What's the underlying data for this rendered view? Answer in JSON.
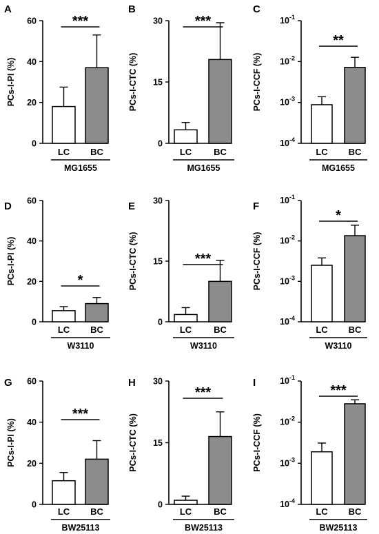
{
  "chart_data": [
    {
      "panel": "A",
      "type": "bar",
      "categories": [
        "LC",
        "BC"
      ],
      "values": [
        18,
        37
      ],
      "errors": [
        9.5,
        16
      ],
      "ylabel": "PCs-I-PI (%)",
      "ylim": [
        0,
        60
      ],
      "yticks": [
        "0",
        "20",
        "40",
        "60"
      ],
      "strain": "MG1655",
      "significance": "***",
      "bar_colors": [
        "#ffffff",
        "#8c8c8c"
      ]
    },
    {
      "panel": "B",
      "type": "bar",
      "categories": [
        "LC",
        "BC"
      ],
      "values": [
        3.3,
        20.5
      ],
      "errors": [
        1.8,
        9
      ],
      "ylabel": "PCs-I-CTC (%)",
      "ylim": [
        0,
        30
      ],
      "yticks": [
        "0",
        "15",
        "30"
      ],
      "strain": "MG1655",
      "significance": "***",
      "bar_colors": [
        "#ffffff",
        "#8c8c8c"
      ]
    },
    {
      "panel": "C",
      "type": "bar",
      "categories": [
        "LC",
        "BC"
      ],
      "values": [
        0.00088,
        0.0072
      ],
      "errors": [
        0.0005,
        0.0055
      ],
      "ylabel": "PCs-I-CCF (%)",
      "ylim": [
        0.0001,
        0.1
      ],
      "yscale": "log",
      "yticks": [
        {
          "base": "10",
          "exp": "-4"
        },
        {
          "base": "10",
          "exp": "-3"
        },
        {
          "base": "10",
          "exp": "-2"
        },
        {
          "base": "10",
          "exp": "-1"
        }
      ],
      "strain": "MG1655",
      "significance": "**",
      "bar_colors": [
        "#ffffff",
        "#8c8c8c"
      ]
    },
    {
      "panel": "D",
      "type": "bar",
      "categories": [
        "LC",
        "BC"
      ],
      "values": [
        5.5,
        9
      ],
      "errors": [
        2,
        3
      ],
      "ylabel": "PCs-I-PI (%)",
      "ylim": [
        0,
        60
      ],
      "yticks": [
        "0",
        "20",
        "40",
        "60"
      ],
      "strain": "W3110",
      "significance": "*",
      "bar_colors": [
        "#ffffff",
        "#8c8c8c"
      ]
    },
    {
      "panel": "E",
      "type": "bar",
      "categories": [
        "LC",
        "BC"
      ],
      "values": [
        1.8,
        10
      ],
      "errors": [
        1.7,
        5.2
      ],
      "ylabel": "PCs-I-CTC (%)",
      "ylim": [
        0,
        30
      ],
      "yticks": [
        "0",
        "15",
        "30"
      ],
      "strain": "W3110",
      "significance": "***",
      "bar_colors": [
        "#ffffff",
        "#8c8c8c"
      ]
    },
    {
      "panel": "F",
      "type": "bar",
      "categories": [
        "LC",
        "BC"
      ],
      "values": [
        0.0025,
        0.0135
      ],
      "errors": [
        0.0013,
        0.011
      ],
      "ylabel": "PCs-I-CCF (%)",
      "ylim": [
        0.0001,
        0.1
      ],
      "yscale": "log",
      "yticks": [
        {
          "base": "10",
          "exp": "-4"
        },
        {
          "base": "10",
          "exp": "-3"
        },
        {
          "base": "10",
          "exp": "-2"
        },
        {
          "base": "10",
          "exp": "-1"
        }
      ],
      "strain": "W3110",
      "significance": "*",
      "bar_colors": [
        "#ffffff",
        "#8c8c8c"
      ]
    },
    {
      "panel": "G",
      "type": "bar",
      "categories": [
        "LC",
        "BC"
      ],
      "values": [
        11.5,
        22
      ],
      "errors": [
        4,
        9
      ],
      "ylabel": "PCs-I-PI (%)",
      "ylim": [
        0,
        60
      ],
      "yticks": [
        "0",
        "20",
        "40",
        "60"
      ],
      "strain": "BW25113",
      "significance": "***",
      "bar_colors": [
        "#ffffff",
        "#8c8c8c"
      ]
    },
    {
      "panel": "H",
      "type": "bar",
      "categories": [
        "LC",
        "BC"
      ],
      "values": [
        1,
        16.5
      ],
      "errors": [
        1,
        6
      ],
      "ylabel": "PCs-I-CTC (%)",
      "ylim": [
        0,
        30
      ],
      "yticks": [
        "0",
        "15",
        "30"
      ],
      "strain": "BW25113",
      "significance": "***",
      "bar_colors": [
        "#ffffff",
        "#8c8c8c"
      ]
    },
    {
      "panel": "I",
      "type": "bar",
      "categories": [
        "LC",
        "BC"
      ],
      "values": [
        0.0019,
        0.028
      ],
      "errors": [
        0.0012,
        0.007
      ],
      "ylabel": "PCs-I-CCF (%)",
      "ylim": [
        0.0001,
        0.1
      ],
      "yscale": "log",
      "yticks": [
        {
          "base": "10",
          "exp": "-4"
        },
        {
          "base": "10",
          "exp": "-3"
        },
        {
          "base": "10",
          "exp": "-2"
        },
        {
          "base": "10",
          "exp": "-1"
        }
      ],
      "strain": "BW25113",
      "significance": "***",
      "bar_colors": [
        "#ffffff",
        "#8c8c8c"
      ]
    }
  ]
}
